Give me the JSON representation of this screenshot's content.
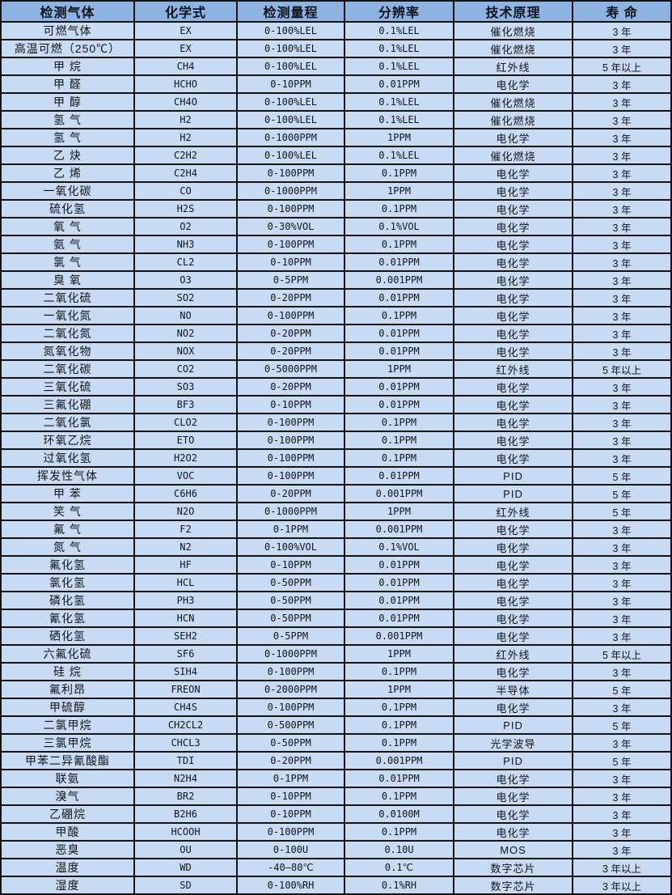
{
  "colors": {
    "header_bg": "#8fb3e0",
    "row_bg": "#c9dbf2",
    "border": "#141414",
    "text": "#10151c"
  },
  "table": {
    "columns": [
      "检测气体",
      "化学式",
      "检测量程",
      "分辨率",
      "技术原理",
      "寿 命"
    ],
    "rows": [
      [
        "可燃气体",
        "EX",
        "0-100%LEL",
        "0.1%LEL",
        "催化燃烧",
        "3 年"
      ],
      [
        "高温可燃（250℃）",
        "EX",
        "0-100%LEL",
        "0.1%LEL",
        "催化燃烧",
        "3 年"
      ],
      [
        "甲 烷",
        "CH4",
        "0-100%LEL",
        "0.1%LEL",
        "红外线",
        "5 年以上"
      ],
      [
        "甲 醛",
        "HCHO",
        "0-10PPM",
        "0.01PPM",
        "电化学",
        "3 年"
      ],
      [
        "甲 醇",
        "CH4O",
        "0-100%LEL",
        "0.1%LEL",
        "催化燃烧",
        "3 年"
      ],
      [
        "氢 气",
        "H2",
        "0-100%LEL",
        "0.1%LEL",
        "催化燃烧",
        "3 年"
      ],
      [
        "氢 气",
        "H2",
        "0-1000PPM",
        "1PPM",
        "电化学",
        "3 年"
      ],
      [
        "乙 炔",
        "C2H2",
        "0-100%LEL",
        "0.1%LEL",
        "催化燃烧",
        "3 年"
      ],
      [
        "乙 烯",
        "C2H4",
        "0-100PPM",
        "0.1PPM",
        "电化学",
        "3 年"
      ],
      [
        "一氧化碳",
        "CO",
        "0-1000PPM",
        "1PPM",
        "电化学",
        "3 年"
      ],
      [
        "硫化氢",
        "H2S",
        "0-100PPM",
        "0.1PPM",
        "电化学",
        "3 年"
      ],
      [
        "氧 气",
        "O2",
        "0-30%VOL",
        "0.1%VOL",
        "电化学",
        "3 年"
      ],
      [
        "氨 气",
        "NH3",
        "0-100PPM",
        "0.1PPM",
        "电化学",
        "3 年"
      ],
      [
        "氯 气",
        "CL2",
        "0-10PPM",
        "0.01PPM",
        "电化学",
        "3 年"
      ],
      [
        "臭 氧",
        "O3",
        "0-5PPM",
        "0.001PPM",
        "电化学",
        "3 年"
      ],
      [
        "二氧化硫",
        "SO2",
        "0-20PPM",
        "0.01PPM",
        "电化学",
        "3 年"
      ],
      [
        "一氧化氮",
        "NO",
        "0-100PPM",
        "0.1PPM",
        "电化学",
        "3 年"
      ],
      [
        "二氧化氮",
        "NO2",
        "0-20PPM",
        "0.01PPM",
        "电化学",
        "3 年"
      ],
      [
        "氮氧化物",
        "NOX",
        "0-20PPM",
        "0.01PPM",
        "电化学",
        "3 年"
      ],
      [
        "二氧化碳",
        "CO2",
        "0-5000PPM",
        "1PPM",
        "红外线",
        "5 年以上"
      ],
      [
        "三氧化硫",
        "SO3",
        "0-20PPM",
        "0.01PPM",
        "电化学",
        "3 年"
      ],
      [
        "三氟化硼",
        "BF3",
        "0-10PPM",
        "0.01PPM",
        "电化学",
        "3 年"
      ],
      [
        "二氧化氯",
        "CLO2",
        "0-100PPM",
        "0.1PPM",
        "电化学",
        "3 年"
      ],
      [
        "环氧乙烷",
        "ETO",
        "0-100PPM",
        "0.1PPM",
        "电化学",
        "3 年"
      ],
      [
        "过氧化氢",
        "H2O2",
        "0-100PPM",
        "0.1PPM",
        "电化学",
        "3 年"
      ],
      [
        "挥发性气体",
        "VOC",
        "0-100PPM",
        "0.01PPM",
        "PID",
        "5 年"
      ],
      [
        "甲 苯",
        "C6H6",
        "0-20PPM",
        "0.001PPM",
        "PID",
        "5 年"
      ],
      [
        "笑 气",
        "N2O",
        "0-1000PPM",
        "1PPM",
        "红外线",
        "5 年"
      ],
      [
        "氟 气",
        "F2",
        "0-1PPM",
        "0.001PPM",
        "电化学",
        "3 年"
      ],
      [
        "氮 气",
        "N2",
        "0-100%VOL",
        "0.1%VOL",
        "电化学",
        "3 年"
      ],
      [
        "氟化氢",
        "HF",
        "0-10PPM",
        "0.01PPM",
        "电化学",
        "3 年"
      ],
      [
        "氯化氢",
        "HCL",
        "0-50PPM",
        "0.01PPM",
        "电化学",
        "3 年"
      ],
      [
        "磷化氢",
        "PH3",
        "0-50PPM",
        "0.01PPM",
        "电化学",
        "3 年"
      ],
      [
        "氰化氢",
        "HCN",
        "0-50PPM",
        "0.01PPM",
        "电化学",
        "3 年"
      ],
      [
        "硒化氢",
        "SEH2",
        "0-5PPM",
        "0.001PPM",
        "电化学",
        "3 年"
      ],
      [
        "六氟化硫",
        "SF6",
        "0-1000PPM",
        "1PPM",
        "红外线",
        "5 年以上"
      ],
      [
        "硅 烷",
        "SIH4",
        "0-100PPM",
        "0.1PPM",
        "电化学",
        "3 年"
      ],
      [
        "氟利昂",
        "FREON",
        "0-2000PPM",
        "1PPM",
        "半导体",
        "5 年"
      ],
      [
        "甲硫醇",
        "CH4S",
        "0-100PPM",
        "0.1PPM",
        "电化学",
        "3 年"
      ],
      [
        "二氯甲烷",
        "CH2CL2",
        "0-500PPM",
        "0.1PPM",
        "PID",
        "5 年"
      ],
      [
        "三氯甲烷",
        "CHCL3",
        "0-50PPM",
        "0.1PPM",
        "光学波导",
        "3 年"
      ],
      [
        "甲苯二异氰酸酯",
        "TDI",
        "0-20PPM",
        "0.001PPM",
        "PID",
        "5 年"
      ],
      [
        "联氨",
        "N2H4",
        "0-1PPM",
        "0.01PPM",
        "电化学",
        "3 年"
      ],
      [
        "溴气",
        "BR2",
        "0-10PPM",
        "0.1PPM",
        "电化学",
        "3 年"
      ],
      [
        "乙硼烷",
        "B2H6",
        "0-10PPM",
        "0.0100M",
        "电化学",
        "3 年"
      ],
      [
        "甲酸",
        "HCOOH",
        "0-100PPM",
        "0.1PPM",
        "电化学",
        "3 年"
      ],
      [
        "恶臭",
        "OU",
        "0-100U",
        "0.10U",
        "MOS",
        "3 年"
      ],
      [
        "温度",
        "WD",
        "-40—80℃",
        "0.1℃",
        "数字芯片",
        "3 年以上"
      ],
      [
        "湿度",
        "SD",
        "0-100%RH",
        "0.1%RH",
        "数字芯片",
        "3 年以上"
      ]
    ]
  }
}
